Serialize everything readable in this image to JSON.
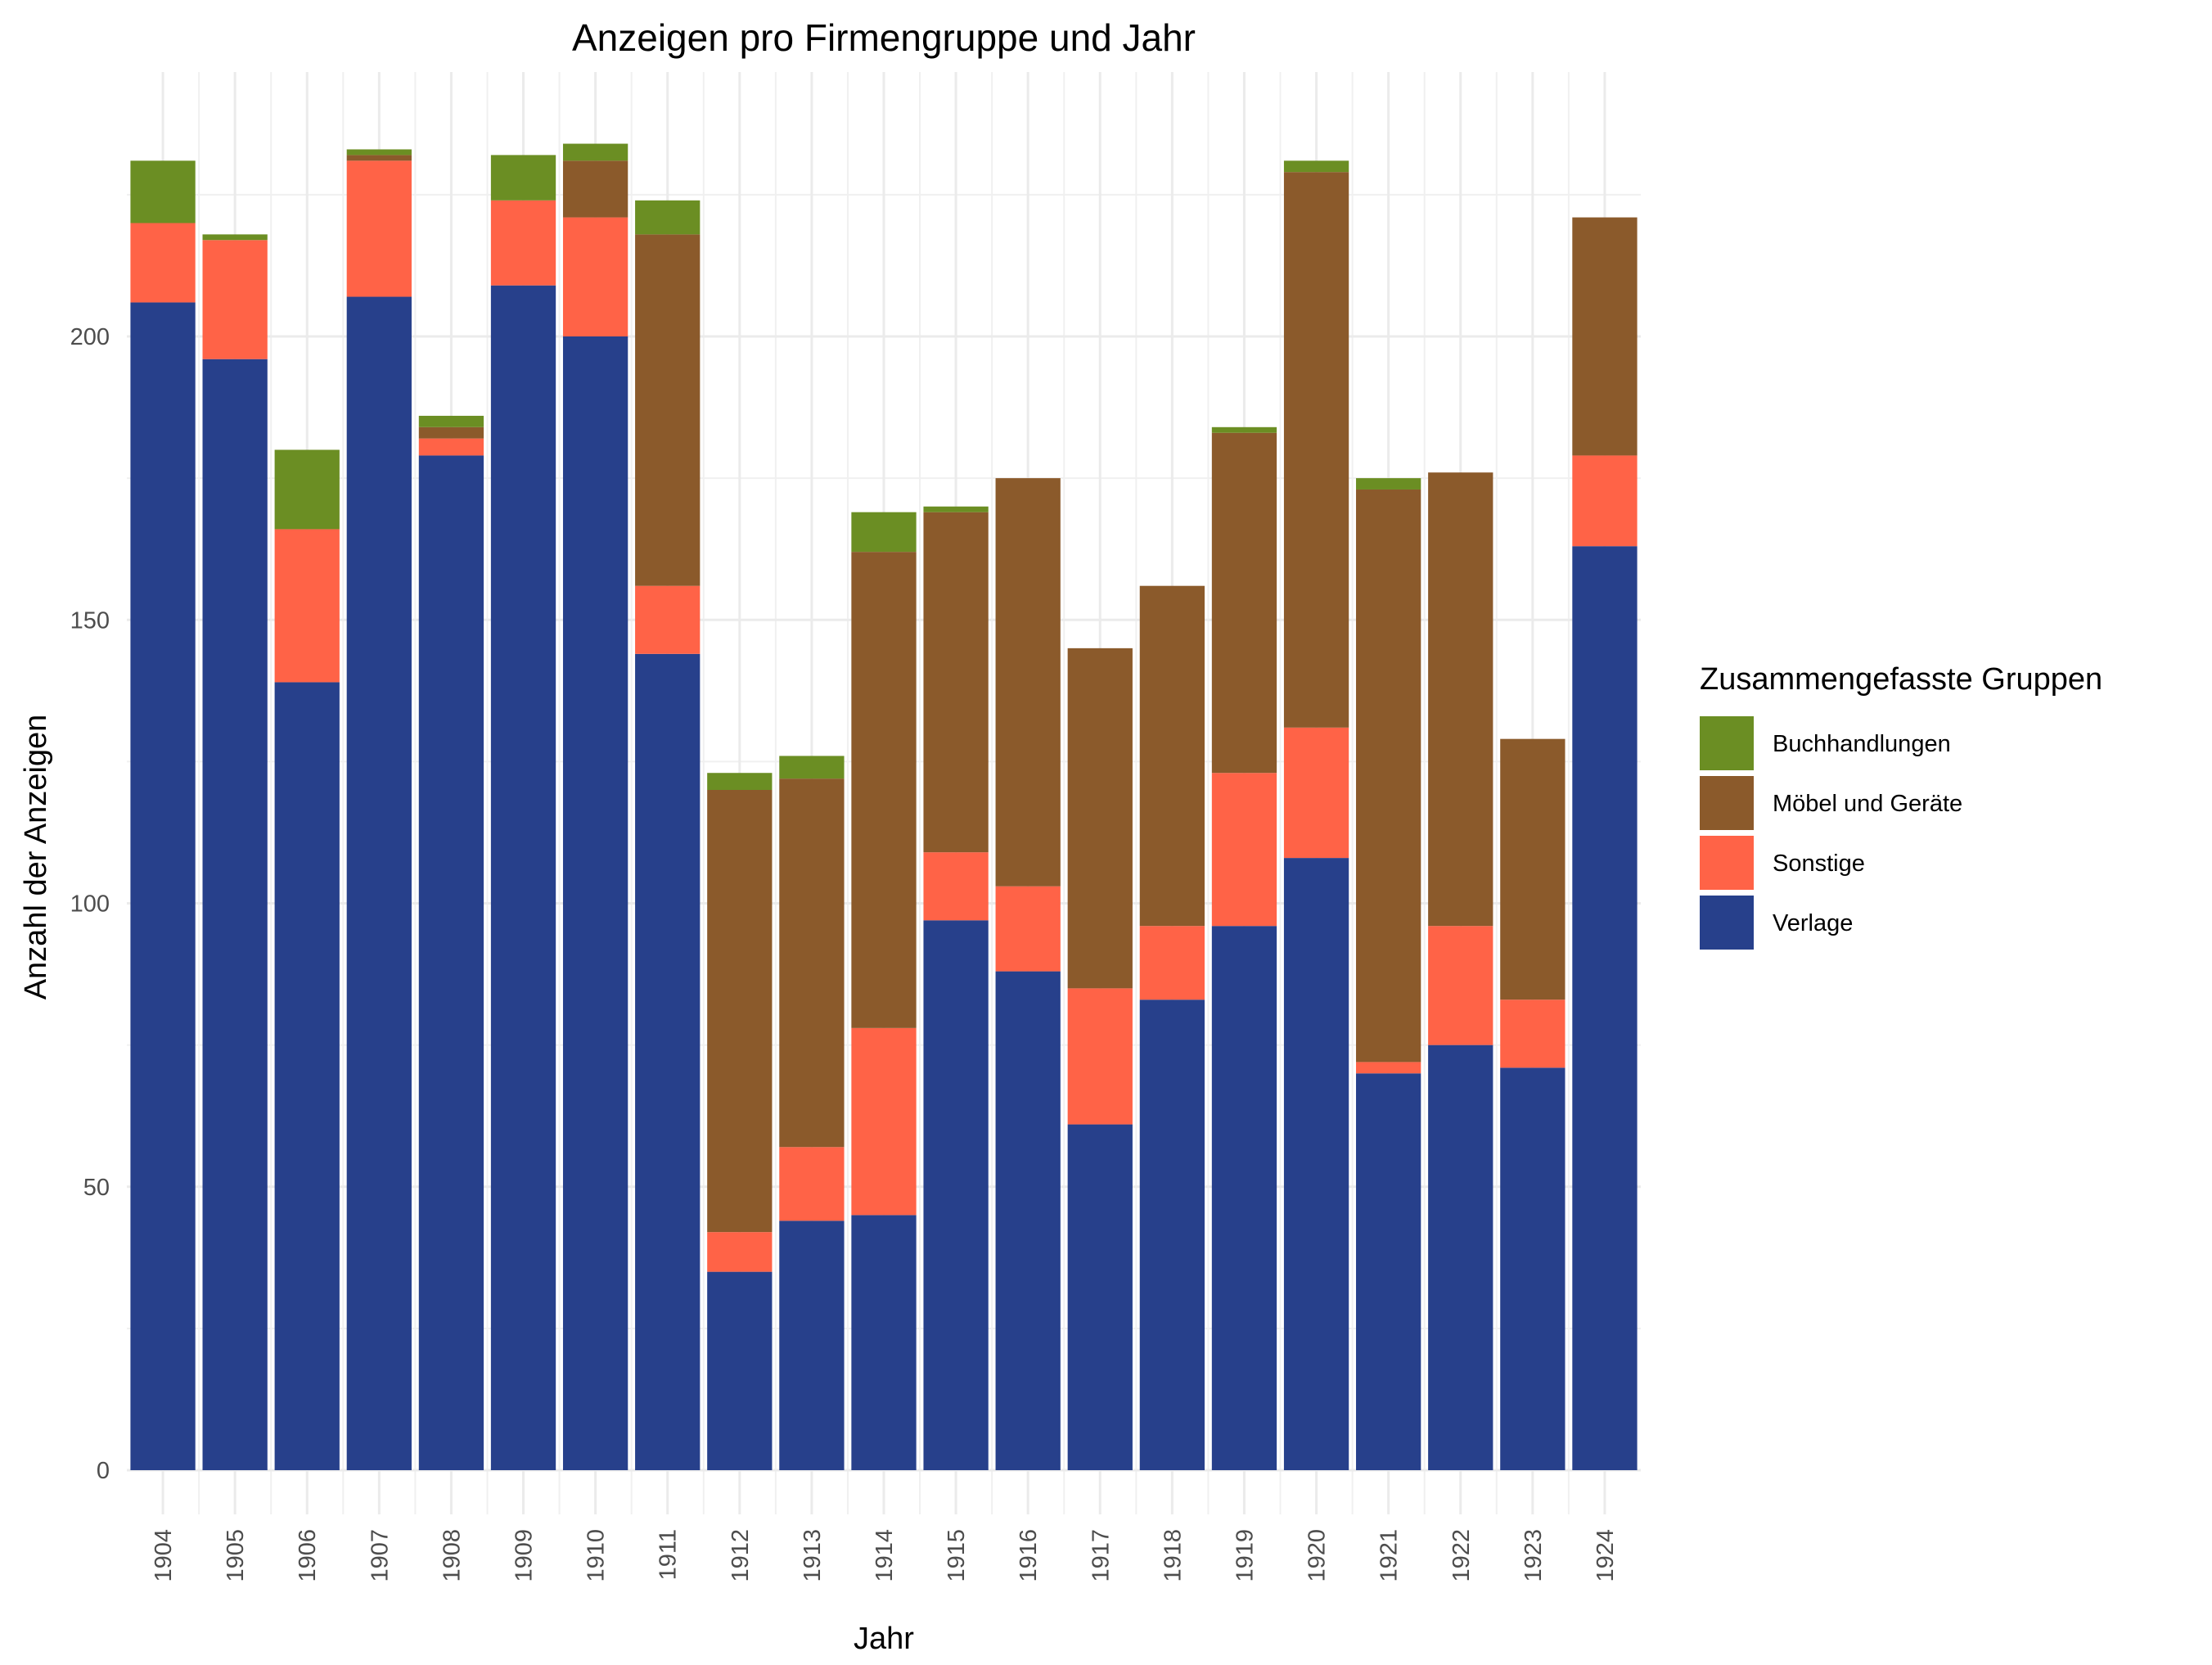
{
  "chart_data": {
    "type": "bar",
    "stacked": true,
    "title": "Anzeigen pro Firmengruppe und Jahr",
    "xlabel": "Jahr",
    "ylabel": "Anzahl der Anzeigen",
    "ylim": [
      -7.5,
      245
    ],
    "yticks": [
      0,
      50,
      100,
      150,
      200
    ],
    "yticks_labels": [
      "0",
      "50",
      "100",
      "150",
      "200"
    ],
    "grid": true,
    "legend": {
      "title": "Zusammengefasste Gruppen",
      "position": "right"
    },
    "categories": [
      "1904",
      "1905",
      "1906",
      "1907",
      "1908",
      "1909",
      "1910",
      "1911",
      "1912",
      "1913",
      "1914",
      "1915",
      "1916",
      "1917",
      "1918",
      "1919",
      "1920",
      "1921",
      "1922",
      "1923",
      "1924"
    ],
    "series": [
      {
        "name": "Verlage",
        "color": "#27408b",
        "values": [
          206,
          196,
          139,
          207,
          179,
          209,
          200,
          144,
          35,
          44,
          45,
          97,
          88,
          61,
          83,
          96,
          108,
          70,
          75,
          71,
          163
        ]
      },
      {
        "name": "Sonstige",
        "color": "#ff6347",
        "values": [
          14,
          21,
          27,
          24,
          3,
          15,
          21,
          12,
          7,
          13,
          33,
          12,
          15,
          24,
          13,
          27,
          23,
          2,
          21,
          12,
          16
        ]
      },
      {
        "name": "Möbel und Geräte",
        "color": "#8b5a2b",
        "values": [
          0,
          0,
          0,
          1,
          2,
          0,
          10,
          62,
          78,
          65,
          84,
          60,
          72,
          60,
          60,
          60,
          98,
          101,
          80,
          46,
          42
        ]
      },
      {
        "name": "Buchhandlungen",
        "color": "#6b8e23",
        "values": [
          11,
          1,
          14,
          1,
          2,
          8,
          3,
          6,
          3,
          4,
          7,
          1,
          0,
          0,
          0,
          1,
          2,
          2,
          0,
          0,
          0
        ]
      }
    ],
    "legend_order": [
      "Buchhandlungen",
      "Möbel und Geräte",
      "Sonstige",
      "Verlage"
    ]
  }
}
